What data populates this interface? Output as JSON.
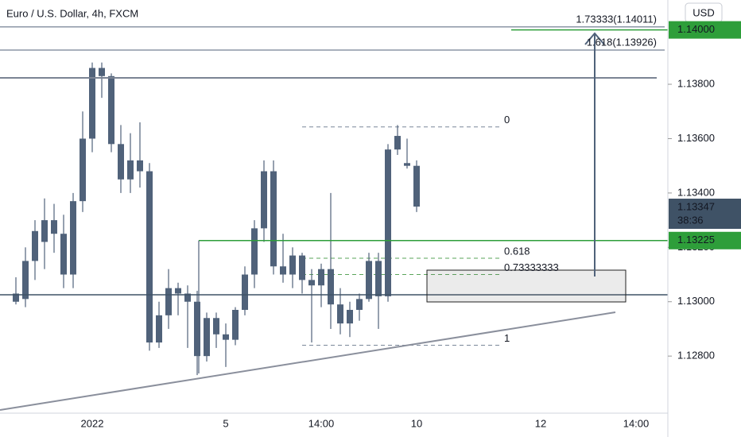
{
  "header": {
    "title": "Euro / U.S. Dollar, 4h, FXCM",
    "currency": "USD"
  },
  "chart_data": {
    "type": "candlestick",
    "categories": [
      null,
      null,
      null,
      null,
      null,
      null,
      null,
      null,
      "2022",
      null,
      null,
      null,
      null,
      null,
      null,
      null,
      null,
      null,
      null,
      null,
      null,
      null,
      "5",
      null,
      null,
      null,
      null,
      null,
      null,
      null,
      null,
      null,
      "14:00",
      null,
      null,
      null,
      null,
      null,
      null,
      null,
      null,
      null,
      "10",
      null,
      null,
      null,
      null,
      null,
      null,
      null,
      null,
      null,
      null,
      null,
      null,
      "12",
      null,
      null,
      null,
      null,
      null,
      null,
      null,
      null,
      null,
      "14:00",
      null,
      null
    ],
    "open": [
      1.1303,
      1.1301,
      1.1315,
      1.1322,
      1.133,
      1.1325,
      1.131,
      1.1337,
      1.136,
      1.1386,
      1.1383,
      1.1358,
      1.1345,
      1.1352,
      1.1348,
      1.1285,
      1.1295,
      1.1305,
      1.1303,
      1.13,
      1.128,
      1.1294,
      1.1288,
      1.1286,
      1.1297,
      1.131,
      1.1327,
      1.1348,
      1.1313,
      1.131,
      1.1317,
      1.1308,
      1.1306,
      1.1312,
      1.1299,
      1.1292,
      1.1297,
      1.1301,
      1.1315,
      1.1302,
      1.1356,
      1.1351,
      1.135,
      null,
      null,
      null,
      null,
      null,
      null,
      null,
      null,
      null,
      null,
      null,
      null,
      null,
      null,
      null,
      null,
      null,
      null,
      null,
      null,
      null,
      null,
      null,
      null,
      null
    ],
    "high": [
      1.1309,
      1.132,
      1.133,
      1.1338,
      1.1336,
      1.1332,
      1.134,
      1.137,
      1.1388,
      1.1388,
      1.1384,
      1.1365,
      1.1362,
      1.1366,
      1.1351,
      1.13,
      1.1312,
      1.1307,
      1.1306,
      1.1304,
      1.1296,
      1.1296,
      1.1292,
      1.1298,
      1.1313,
      1.133,
      1.1352,
      1.1352,
      1.1325,
      1.132,
      1.1318,
      1.1312,
      1.1314,
      1.134,
      1.1305,
      1.13,
      1.1303,
      1.1318,
      1.1318,
      1.1358,
      1.1365,
      1.136,
      1.1352,
      null,
      null,
      null,
      null,
      null,
      null,
      null,
      null,
      null,
      null,
      null,
      null,
      null,
      null,
      null,
      null,
      null,
      null,
      null,
      null,
      null,
      null,
      null,
      null,
      null
    ],
    "low": [
      1.1299,
      1.1298,
      1.1308,
      1.1312,
      1.1318,
      1.1305,
      1.1305,
      1.1333,
      1.1355,
      1.1375,
      1.1355,
      1.134,
      1.134,
      1.1342,
      1.1282,
      1.1283,
      1.129,
      1.1295,
      1.1283,
      1.1273,
      1.1278,
      1.1283,
      1.1276,
      1.1284,
      1.1295,
      1.1305,
      1.1322,
      1.131,
      1.1307,
      1.1305,
      1.1303,
      1.1285,
      1.1298,
      1.129,
      1.1288,
      1.1287,
      1.1293,
      1.13,
      1.129,
      1.13,
      1.1354,
      1.1349,
      1.1333,
      null,
      null,
      null,
      null,
      null,
      null,
      null,
      null,
      null,
      null,
      null,
      null,
      null,
      null,
      null,
      null,
      null,
      null,
      null,
      null,
      null,
      null,
      null,
      null,
      null
    ],
    "close": [
      1.13,
      1.1315,
      1.1326,
      1.133,
      1.1325,
      1.131,
      1.1337,
      1.136,
      1.1386,
      1.1383,
      1.1358,
      1.1345,
      1.1352,
      1.1348,
      1.1285,
      1.1295,
      1.1305,
      1.1303,
      1.13,
      1.128,
      1.1294,
      1.1288,
      1.1286,
      1.1297,
      1.131,
      1.1327,
      1.1348,
      1.1313,
      1.131,
      1.1317,
      1.1308,
      1.1306,
      1.1312,
      1.1299,
      1.1292,
      1.1297,
      1.1301,
      1.1315,
      1.1302,
      1.1356,
      1.1361,
      1.135,
      1.1335,
      null,
      null,
      null,
      null,
      null,
      null,
      null,
      null,
      null,
      null,
      null,
      null,
      null,
      null,
      null,
      null,
      null,
      null,
      null,
      null,
      null,
      null,
      null,
      null,
      null
    ],
    "color": "#50627a",
    "ylim": [
      1.1259,
      1.1411
    ],
    "yticks": [
      {
        "value": 1.128,
        "label": "1.12800"
      },
      {
        "value": 1.13,
        "label": "1.13000"
      },
      {
        "value": 1.132,
        "label": "1.13200"
      },
      {
        "value": 1.134,
        "label": "1.13400"
      },
      {
        "value": 1.136,
        "label": "1.13600"
      },
      {
        "value": 1.138,
        "label": "1.13800"
      }
    ],
    "price_labels": [
      {
        "value": 1.14,
        "label": "1.14000",
        "color": "#2e9e3a"
      },
      {
        "value": 1.13347,
        "label": "1.13347",
        "sublabel": "38:36",
        "color": "#3f5266"
      },
      {
        "value": 1.13225,
        "label": "1.13225",
        "color": "#2e9e3a"
      }
    ],
    "fib_levels": [
      {
        "value": 1.13643,
        "label": "0",
        "color": "#7a8799"
      },
      {
        "value": 1.1316,
        "label": "0.618",
        "color": "#5aa55a"
      },
      {
        "value": 1.131,
        "label": "0.73333333",
        "color": "#5aa55a"
      },
      {
        "value": 1.1284,
        "label": "1",
        "color": "#7a8799"
      }
    ],
    "extension_labels": [
      {
        "value": 1.14011,
        "label": "1.73333(1.14011)"
      },
      {
        "value": 1.13926,
        "label": "1.618(1.13926)"
      }
    ]
  }
}
